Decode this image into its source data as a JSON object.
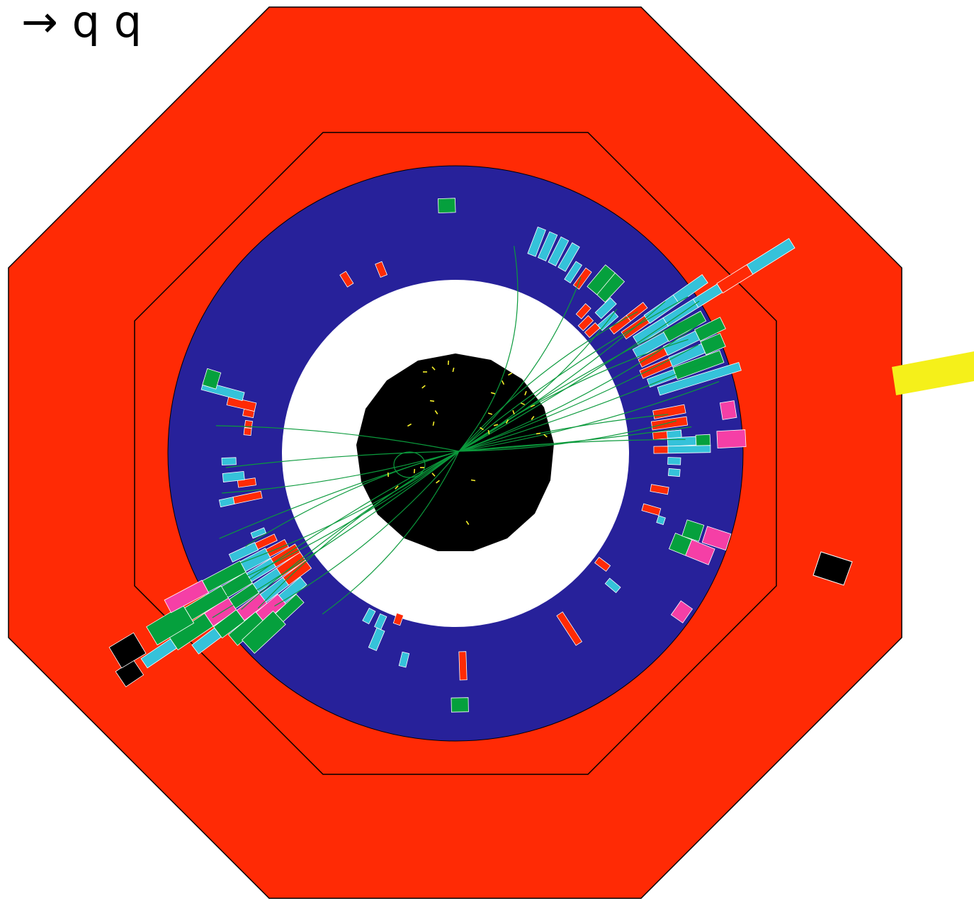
{
  "title": "→ q q",
  "colors": {
    "background": "#ffffff",
    "outer_detector": "#ff2a05",
    "calorimeter_ring": "#27219a",
    "inner_gap": "#ffffff",
    "tracker_core": "#000000",
    "tracks": "#0b9a3c",
    "hits": "#f5f02a",
    "deposit_red": "#ff2a05",
    "deposit_cyan": "#35c2da",
    "deposit_green": "#05a03d",
    "deposit_magenta": "#f53fa6",
    "deposit_black": "#000000",
    "beam_marker": "#f5f01a"
  }
}
